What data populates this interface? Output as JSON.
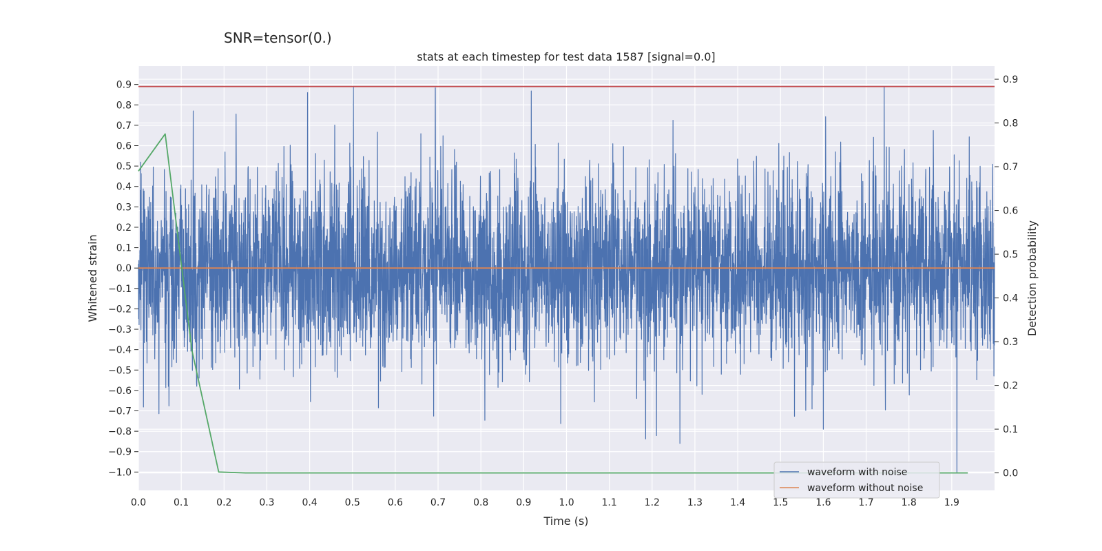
{
  "figure": {
    "suptitle": "SNR=tensor(0.)"
  },
  "chart_data": {
    "type": "line",
    "title": "stats at each timestep for test data 1587 [signal=0.0]",
    "xlabel": "Time (s)",
    "ylabel": "Whitened strain",
    "ylabel_right": "Detection probability",
    "xlim": [
      0.0,
      2.0
    ],
    "ylim": [
      -1.09,
      0.99
    ],
    "ylim_right": [
      -0.04,
      0.93
    ],
    "x_ticks": [
      "0.0",
      "0.1",
      "0.2",
      "0.3",
      "0.4",
      "0.5",
      "0.6",
      "0.7",
      "0.8",
      "0.9",
      "1.0",
      "1.1",
      "1.2",
      "1.3",
      "1.4",
      "1.5",
      "1.6",
      "1.7",
      "1.8",
      "1.9"
    ],
    "y_ticks": [
      "0.9",
      "0.8",
      "0.7",
      "0.6",
      "0.5",
      "0.4",
      "0.3",
      "0.2",
      "0.1",
      "0.0",
      "−0.1",
      "−0.2",
      "−0.3",
      "−0.4",
      "−0.5",
      "−0.6",
      "−0.7",
      "−0.8",
      "−0.9",
      "−1.0"
    ],
    "y_ticks_right": [
      "0.9",
      "0.8",
      "0.7",
      "0.6",
      "0.5",
      "0.4",
      "0.3",
      "0.2",
      "0.1",
      "0.0"
    ],
    "grid": true,
    "legend_position": "lower-right",
    "series": [
      {
        "name": "waveform with noise",
        "axis": "left",
        "color": "#4c72b0",
        "kind": "noise",
        "samples": 4096,
        "x_start": 0.0,
        "x_end": 2.0,
        "range": [
          -1.0,
          0.89
        ],
        "peaks": [
          [
            0.128,
            0.77
          ],
          [
            0.395,
            0.86
          ],
          [
            0.502,
            0.89
          ],
          [
            1.742,
            0.89
          ],
          [
            1.265,
            -0.86
          ],
          [
            1.6,
            -0.79
          ],
          [
            1.912,
            -1.0
          ]
        ]
      },
      {
        "name": "waveform without noise",
        "axis": "left",
        "color": "#dd8452",
        "kind": "constant",
        "y": 0.0
      },
      {
        "name": "",
        "axis": "right",
        "color": "#55a868",
        "kind": "line",
        "x": [
          0.0,
          0.0625,
          0.125,
          0.1875,
          0.25,
          0.5,
          1.0,
          1.5,
          1.9375
        ],
        "y": [
          0.69,
          0.775,
          0.28,
          0.002,
          0.0,
          0.0,
          0.0,
          0.0,
          0.0
        ]
      }
    ],
    "threshold": {
      "axis": "left",
      "color": "#c44e52",
      "y": 0.89
    }
  }
}
